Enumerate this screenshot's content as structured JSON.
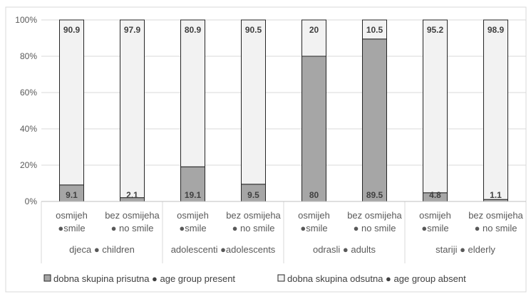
{
  "chart_data": {
    "type": "bar",
    "stacked": true,
    "ylim": [
      0,
      100
    ],
    "y_ticks": [
      "0%",
      "20%",
      "40%",
      "60%",
      "80%",
      "100%"
    ],
    "grid": true,
    "legend_position": "bottom",
    "groups": [
      {
        "label": "djeca ● children",
        "categories": [
          "osmijeh ●smile",
          "bez osmijeha ● no smile"
        ]
      },
      {
        "label": "adolescenti ●adolescents",
        "categories": [
          "osmijeh ●smile",
          "bez osmijeha ● no smile"
        ]
      },
      {
        "label": "odrasli ● adults",
        "categories": [
          "osmijeh ●smile",
          "bez osmijeha ● no smile"
        ]
      },
      {
        "label": "stariji ● elderly",
        "categories": [
          "osmijeh ●smile",
          "bez osmijeha ● no smile"
        ]
      }
    ],
    "series": [
      {
        "name": "dobna skupina prisutna ● age group present",
        "color": "#a6a6a6",
        "values": [
          9.1,
          2.1,
          19.1,
          9.5,
          80,
          89.5,
          4.8,
          1.1
        ]
      },
      {
        "name": "dobna skupina odsutna ● age group absent",
        "color": "#f2f2f2",
        "values": [
          90.9,
          97.9,
          80.9,
          90.5,
          20,
          10.5,
          95.2,
          98.9
        ]
      }
    ]
  }
}
